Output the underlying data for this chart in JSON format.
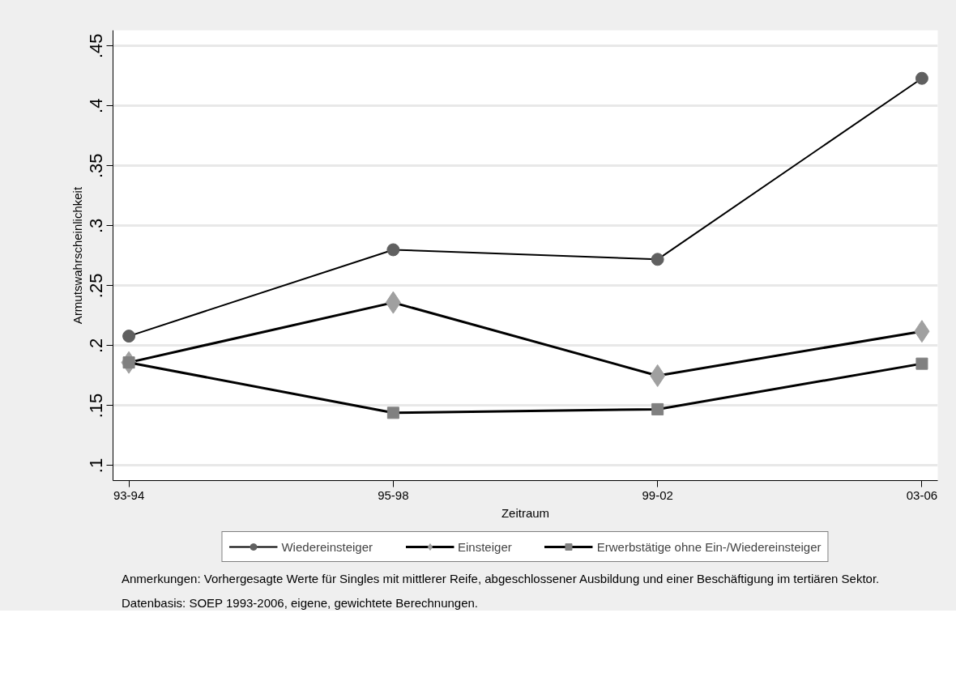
{
  "chart_data": {
    "type": "line",
    "xlabel": "Zeitraum",
    "ylabel": "Armutswahrscheinlichkeit",
    "categories": [
      "93-94",
      "95-98",
      "99-02",
      "03-06"
    ],
    "series": [
      {
        "name": "Wiedereinsteiger",
        "color": "#606060",
        "marker": "circle",
        "values": [
          0.208,
          0.28,
          0.272,
          0.423
        ]
      },
      {
        "name": "Einsteiger",
        "color": "#a0a0a0",
        "marker": "diamond",
        "values": [
          0.186,
          0.236,
          0.175,
          0.212
        ]
      },
      {
        "name": "Erwerbstätige ohne Ein-/Wiedereinsteiger",
        "color": "#808080",
        "marker": "square",
        "values": [
          0.186,
          0.144,
          0.147,
          0.185
        ]
      }
    ],
    "ylim": [
      0.0875,
      0.463
    ],
    "yticks": [
      {
        "value": 0.1,
        "label": ".1"
      },
      {
        "value": 0.15,
        "label": ".15"
      },
      {
        "value": 0.2,
        "label": ".2"
      },
      {
        "value": 0.25,
        "label": ".25"
      },
      {
        "value": 0.3,
        "label": ".3"
      },
      {
        "value": 0.35,
        "label": ".35"
      },
      {
        "value": 0.4,
        "label": ".4"
      },
      {
        "value": 0.45,
        "label": ".45"
      }
    ],
    "grid": "y",
    "legend": "bottom",
    "line_style": "solid",
    "annotations": [
      "Anmerkungen: Vorhergesagte Werte für Singles mit mittlerer Reife, abgeschlossener Ausbildung und einer Beschäftigung im tertiären Sektor.",
      "Datenbasis: SOEP 1993-2006, eigene, gewichtete Berechnungen."
    ]
  }
}
